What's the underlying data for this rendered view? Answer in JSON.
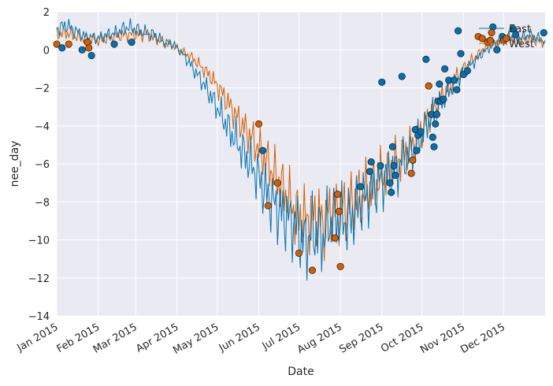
{
  "chart_data": {
    "type": "line",
    "xlabel": "Date",
    "ylabel": "nee_day",
    "xlim": [
      "2015-01-01",
      "2016-01-01"
    ],
    "ylim": [
      -14,
      2
    ],
    "grid": true,
    "legend_placement": "top-right",
    "x_ticks": [
      "2015-01-01",
      "2015-02-01",
      "2015-03-01",
      "2015-04-01",
      "2015-05-01",
      "2015-06-01",
      "2015-07-01",
      "2015-08-01",
      "2015-09-01",
      "2015-10-01",
      "2015-11-01",
      "2015-12-01"
    ],
    "x_tick_labels": [
      "Jan 2015",
      "Feb 2015",
      "Mar 2015",
      "Apr 2015",
      "May 2015",
      "Jun 2015",
      "Jul 2015",
      "Aug 2015",
      "Sep 2015",
      "Oct 2015",
      "Nov 2015",
      "Dec 2015"
    ],
    "y_ticks": [
      2,
      0,
      -2,
      -4,
      -6,
      -8,
      -10,
      -12,
      -14
    ],
    "y_tick_labels": [
      "2",
      "0",
      "−2",
      "−4",
      "−6",
      "−8",
      "−10",
      "−12",
      "−14"
    ],
    "series": [
      {
        "name": "East",
        "color": "#0072b2",
        "line_points": [
          [
            "2015-01-01",
            1.1
          ],
          [
            "2015-01-08",
            1.3
          ],
          [
            "2015-01-15",
            1.0
          ],
          [
            "2015-01-22",
            0.7
          ],
          [
            "2015-02-01",
            0.6
          ],
          [
            "2015-02-08",
            0.8
          ],
          [
            "2015-02-15",
            0.9
          ],
          [
            "2015-02-22",
            1.2
          ],
          [
            "2015-03-01",
            1.1
          ],
          [
            "2015-03-08",
            0.9
          ],
          [
            "2015-03-15",
            0.8
          ],
          [
            "2015-03-22",
            0.4
          ],
          [
            "2015-03-29",
            0.3
          ],
          [
            "2015-04-05",
            -0.2
          ],
          [
            "2015-04-12",
            -0.9
          ],
          [
            "2015-04-19",
            -1.6
          ],
          [
            "2015-04-26",
            -2.4
          ],
          [
            "2015-05-03",
            -3.3
          ],
          [
            "2015-05-10",
            -4.2
          ],
          [
            "2015-05-17",
            -5.0
          ],
          [
            "2015-05-24",
            -5.8
          ],
          [
            "2015-05-31",
            -6.6
          ],
          [
            "2015-06-07",
            -7.6
          ],
          [
            "2015-06-14",
            -8.3
          ],
          [
            "2015-06-21",
            -8.8
          ],
          [
            "2015-06-28",
            -9.2
          ],
          [
            "2015-07-05",
            -10.2
          ],
          [
            "2015-07-12",
            -9.5
          ],
          [
            "2015-07-19",
            -9.9
          ],
          [
            "2015-07-26",
            -8.8
          ],
          [
            "2015-08-02",
            -9.0
          ],
          [
            "2015-08-09",
            -8.9
          ],
          [
            "2015-08-16",
            -8.0
          ],
          [
            "2015-08-23",
            -7.6
          ],
          [
            "2015-08-30",
            -7.0
          ],
          [
            "2015-09-06",
            -6.6
          ],
          [
            "2015-09-13",
            -6.2
          ],
          [
            "2015-09-20",
            -5.6
          ],
          [
            "2015-09-27",
            -5.0
          ],
          [
            "2015-10-04",
            -4.0
          ],
          [
            "2015-10-11",
            -3.2
          ],
          [
            "2015-10-18",
            -2.5
          ],
          [
            "2015-10-25",
            -1.8
          ],
          [
            "2015-11-01",
            -1.2
          ],
          [
            "2015-11-08",
            -0.7
          ],
          [
            "2015-11-15",
            -0.2
          ],
          [
            "2015-11-22",
            0.2
          ],
          [
            "2015-11-29",
            0.5
          ],
          [
            "2015-12-06",
            0.7
          ],
          [
            "2015-12-13",
            0.6
          ],
          [
            "2015-12-20",
            0.8
          ],
          [
            "2015-12-27",
            0.6
          ],
          [
            "2016-01-01",
            0.5
          ]
        ],
        "markers": [
          [
            "2015-01-05",
            0.1
          ],
          [
            "2015-01-20",
            0.0
          ],
          [
            "2015-01-27",
            -0.3
          ],
          [
            "2015-02-13",
            0.3
          ],
          [
            "2015-02-26",
            0.4
          ],
          [
            "2015-06-04",
            -5.3
          ],
          [
            "2015-08-16",
            -7.2
          ],
          [
            "2015-08-23",
            -6.4
          ],
          [
            "2015-08-24",
            -5.9
          ],
          [
            "2015-08-31",
            -6.1
          ],
          [
            "2015-09-01",
            -1.7
          ],
          [
            "2015-09-07",
            -7.0
          ],
          [
            "2015-09-08",
            -7.5
          ],
          [
            "2015-09-09",
            -5.1
          ],
          [
            "2015-09-10",
            -6.1
          ],
          [
            "2015-09-11",
            -6.6
          ],
          [
            "2015-09-16",
            -1.4
          ],
          [
            "2015-09-26",
            -4.2
          ],
          [
            "2015-09-27",
            -5.3
          ],
          [
            "2015-09-28",
            -4.5
          ],
          [
            "2015-09-30",
            -4.3
          ],
          [
            "2015-10-04",
            -0.5
          ],
          [
            "2015-10-08",
            -3.4
          ],
          [
            "2015-10-09",
            -4.6
          ],
          [
            "2015-10-10",
            -5.1
          ],
          [
            "2015-10-11",
            -3.9
          ],
          [
            "2015-10-12",
            -3.4
          ],
          [
            "2015-10-13",
            -2.7
          ],
          [
            "2015-10-14",
            -1.8
          ],
          [
            "2015-10-15",
            -2.7
          ],
          [
            "2015-10-17",
            -2.6
          ],
          [
            "2015-10-18",
            -1.0
          ],
          [
            "2015-10-21",
            -1.6
          ],
          [
            "2015-10-25",
            -1.6
          ],
          [
            "2015-10-27",
            -2.1
          ],
          [
            "2015-10-28",
            1.0
          ],
          [
            "2015-10-30",
            -0.2
          ],
          [
            "2015-11-01",
            -1.3
          ],
          [
            "2015-11-04",
            -1.1
          ],
          [
            "2015-11-23",
            1.2
          ],
          [
            "2015-11-26",
            0.0
          ],
          [
            "2015-11-30",
            0.7
          ],
          [
            "2015-12-08",
            1.1
          ],
          [
            "2015-12-10",
            0.8
          ],
          [
            "2015-12-31",
            0.9
          ]
        ]
      },
      {
        "name": "West",
        "color": "#d55e00",
        "line_points": [
          [
            "2015-01-01",
            0.8
          ],
          [
            "2015-01-08",
            0.9
          ],
          [
            "2015-01-15",
            0.7
          ],
          [
            "2015-01-22",
            0.6
          ],
          [
            "2015-02-01",
            0.5
          ],
          [
            "2015-02-08",
            0.6
          ],
          [
            "2015-02-15",
            0.7
          ],
          [
            "2015-02-22",
            0.8
          ],
          [
            "2015-03-01",
            0.8
          ],
          [
            "2015-03-08",
            0.8
          ],
          [
            "2015-03-15",
            0.6
          ],
          [
            "2015-03-22",
            0.4
          ],
          [
            "2015-03-29",
            0.2
          ],
          [
            "2015-04-05",
            -0.1
          ],
          [
            "2015-04-12",
            -0.4
          ],
          [
            "2015-04-19",
            -0.9
          ],
          [
            "2015-04-26",
            -1.4
          ],
          [
            "2015-05-03",
            -2.1
          ],
          [
            "2015-05-10",
            -2.9
          ],
          [
            "2015-05-17",
            -3.7
          ],
          [
            "2015-05-24",
            -4.4
          ],
          [
            "2015-05-31",
            -5.1
          ],
          [
            "2015-06-07",
            -5.9
          ],
          [
            "2015-06-14",
            -6.7
          ],
          [
            "2015-06-21",
            -7.6
          ],
          [
            "2015-06-28",
            -8.5
          ],
          [
            "2015-07-05",
            -9.0
          ],
          [
            "2015-07-12",
            -8.6
          ],
          [
            "2015-07-19",
            -9.1
          ],
          [
            "2015-07-26",
            -8.3
          ],
          [
            "2015-08-02",
            -8.5
          ],
          [
            "2015-08-09",
            -8.1
          ],
          [
            "2015-08-16",
            -7.6
          ],
          [
            "2015-08-23",
            -7.3
          ],
          [
            "2015-08-30",
            -6.8
          ],
          [
            "2015-09-06",
            -6.3
          ],
          [
            "2015-09-13",
            -5.8
          ],
          [
            "2015-09-20",
            -5.3
          ],
          [
            "2015-09-27",
            -4.7
          ],
          [
            "2015-10-04",
            -3.8
          ],
          [
            "2015-10-11",
            -3.0
          ],
          [
            "2015-10-18",
            -2.3
          ],
          [
            "2015-10-25",
            -1.6
          ],
          [
            "2015-11-01",
            -1.0
          ],
          [
            "2015-11-08",
            -0.5
          ],
          [
            "2015-11-15",
            0.0
          ],
          [
            "2015-11-22",
            0.3
          ],
          [
            "2015-11-29",
            0.5
          ],
          [
            "2015-12-06",
            0.6
          ],
          [
            "2015-12-13",
            0.5
          ],
          [
            "2015-12-20",
            0.6
          ],
          [
            "2015-12-27",
            0.5
          ],
          [
            "2016-01-01",
            0.4
          ]
        ],
        "markers": [
          [
            "2015-01-01",
            0.3
          ],
          [
            "2015-01-10",
            0.3
          ],
          [
            "2015-01-24",
            0.4
          ],
          [
            "2015-01-25",
            0.1
          ],
          [
            "2015-06-01",
            -3.9
          ],
          [
            "2015-06-08",
            -8.2
          ],
          [
            "2015-06-15",
            -7.0
          ],
          [
            "2015-07-01",
            -10.7
          ],
          [
            "2015-07-11",
            -11.6
          ],
          [
            "2015-07-28",
            -9.9
          ],
          [
            "2015-07-30",
            -7.6
          ],
          [
            "2015-07-31",
            -8.5
          ],
          [
            "2015-08-01",
            -11.4
          ],
          [
            "2015-09-23",
            -6.5
          ],
          [
            "2015-09-24",
            -5.8
          ],
          [
            "2015-10-06",
            -1.9
          ],
          [
            "2015-11-12",
            0.7
          ],
          [
            "2015-11-15",
            0.6
          ],
          [
            "2015-11-19",
            0.4
          ],
          [
            "2015-11-21",
            0.5
          ],
          [
            "2015-11-22",
            0.9
          ],
          [
            "2015-12-01",
            0.5
          ],
          [
            "2015-12-03",
            0.6
          ]
        ]
      }
    ]
  }
}
